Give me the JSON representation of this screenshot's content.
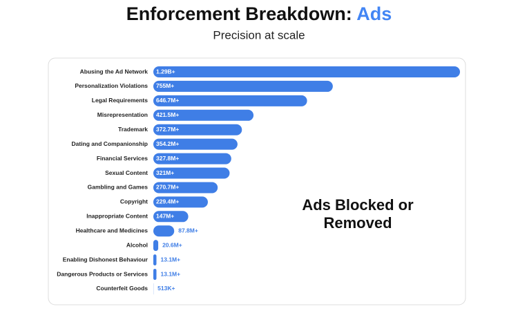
{
  "chart_data": {
    "type": "bar",
    "orientation": "horizontal",
    "title": "Enforcement Breakdown:",
    "title_highlight": "Ads",
    "title_highlight_color": "#4285f4",
    "subtitle": "Precision at scale",
    "annotation": [
      "Ads Blocked or",
      "Removed"
    ],
    "categories": [
      "Abusing the Ad Network",
      "Personalization Violations",
      "Legal Requirements",
      "Misrepresentation",
      "Trademark",
      "Dating and Companionship",
      "Financial Services",
      "Sexual Content",
      "Gambling and Games",
      "Copyright",
      "Inappropriate Content",
      "Healthcare and Medicines",
      "Alcohol",
      "Enabling Dishonest Behaviour",
      "Dangerous Products or Services",
      "Counterfeit Goods"
    ],
    "values": [
      1290,
      755,
      646.7,
      421.5,
      372.7,
      354.2,
      327.8,
      321,
      270.7,
      229.4,
      147,
      87.8,
      20.6,
      13.1,
      13.1,
      0.513
    ],
    "value_labels": [
      "1.29B+",
      "755M+",
      "646.7M+",
      "421.5M+",
      "372.7M+",
      "354.2M+",
      "327.8M+",
      "321M+",
      "270.7M+",
      "229.4M+",
      "147M+",
      "87.8M+",
      "20.6M+",
      "13.1M+",
      "13.1M+",
      "513K+"
    ],
    "color": "#3f7ee6"
  }
}
